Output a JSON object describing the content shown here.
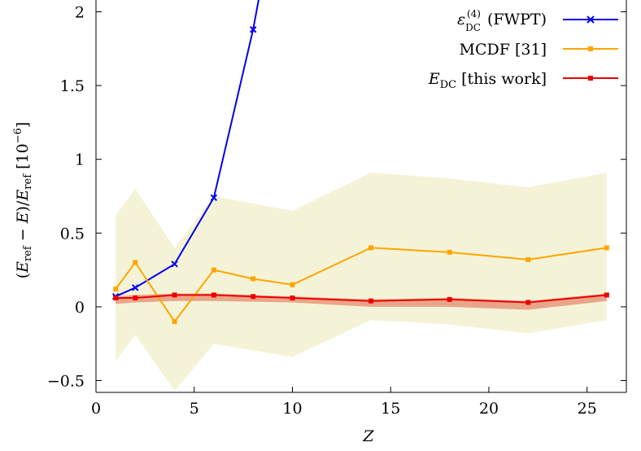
{
  "chart_data": {
    "type": "line",
    "xlabel": "Z",
    "ylabel": "(E_ref − E)/E_ref [10^−6]",
    "xlim": [
      0,
      27
    ],
    "ylim": [
      -0.58,
      2.08
    ],
    "x_ticks": [
      "0",
      "5",
      "10",
      "15",
      "20",
      "25"
    ],
    "y_ticks": [
      "−0.5",
      "0",
      "0.5",
      "1",
      "1.5",
      "2"
    ],
    "grid": false,
    "legend_position": "top-right",
    "series": [
      {
        "name": "ε_DC^(4) (FWPT)",
        "color": "#0000ee",
        "marker": "x",
        "x": [
          1,
          2,
          4,
          6,
          8,
          9
        ],
        "y": [
          0.07,
          0.13,
          0.29,
          0.74,
          1.88,
          2.6
        ]
      },
      {
        "name": "MCDF [31]",
        "color": "#ffa500",
        "marker": "square",
        "x": [
          1,
          2,
          4,
          6,
          8,
          10,
          14,
          18,
          22,
          26
        ],
        "y": [
          0.12,
          0.3,
          -0.1,
          0.25,
          0.19,
          0.15,
          0.4,
          0.37,
          0.32,
          0.4
        ]
      },
      {
        "name": "E_DC [this work]",
        "color": "#ee0000",
        "marker": "square",
        "x": [
          1,
          2,
          4,
          6,
          8,
          10,
          14,
          18,
          22,
          26
        ],
        "y": [
          0.06,
          0.06,
          0.08,
          0.08,
          0.07,
          0.06,
          0.04,
          0.05,
          0.03,
          0.08
        ]
      }
    ],
    "bands": [
      {
        "color": "#f5f3d7",
        "x": [
          1,
          2,
          4,
          6,
          10,
          14,
          18,
          22,
          26
        ],
        "lower": [
          -0.37,
          -0.19,
          -0.57,
          -0.25,
          -0.34,
          -0.09,
          -0.12,
          -0.18,
          -0.09
        ],
        "upper": [
          0.62,
          0.8,
          0.4,
          0.75,
          0.65,
          0.91,
          0.87,
          0.81,
          0.91
        ]
      },
      {
        "color": "#e9a58a",
        "x": [
          1,
          2,
          4,
          6,
          10,
          14,
          18,
          22,
          26
        ],
        "lower": [
          0.02,
          0.03,
          0.04,
          0.04,
          0.03,
          0.0,
          0.0,
          -0.02,
          0.04
        ],
        "upper": [
          0.07,
          0.08,
          0.09,
          0.09,
          0.07,
          0.05,
          0.06,
          0.04,
          0.09
        ]
      }
    ]
  }
}
